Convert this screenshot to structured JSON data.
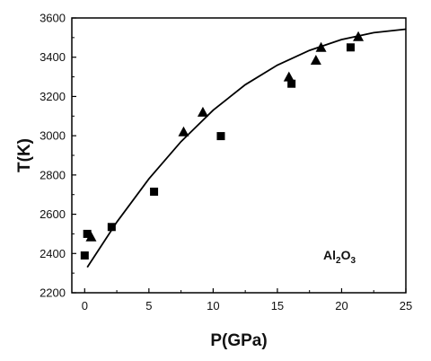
{
  "chart_data": {
    "type": "scatter",
    "xlabel": "P(GPa)",
    "ylabel": "T(K)",
    "xlim": [
      -1,
      25
    ],
    "ylim": [
      2200,
      3600
    ],
    "xticks": [
      0,
      5,
      10,
      15,
      20,
      25
    ],
    "yticks": [
      2200,
      2400,
      2600,
      2800,
      3000,
      3200,
      3400,
      3600
    ],
    "xtick_labels": [
      "0",
      "5",
      "10",
      "15",
      "20",
      "25"
    ],
    "ytick_labels": [
      "2200",
      "2400",
      "2600",
      "2800",
      "3000",
      "3200",
      "3400",
      "3600"
    ],
    "grid": false,
    "annotation": {
      "base": "Al",
      "sub1": "2",
      "mid": "O",
      "sub2": "3"
    },
    "series": [
      {
        "marker": "square",
        "points": [
          {
            "x": 0.0,
            "y": 2390
          },
          {
            "x": 0.2,
            "y": 2500
          },
          {
            "x": 2.1,
            "y": 2535
          },
          {
            "x": 5.4,
            "y": 2715
          },
          {
            "x": 10.6,
            "y": 2998
          },
          {
            "x": 16.1,
            "y": 3265
          },
          {
            "x": 20.7,
            "y": 3450
          }
        ]
      },
      {
        "marker": "triangle",
        "points": [
          {
            "x": 0.5,
            "y": 2485
          },
          {
            "x": 7.7,
            "y": 3020
          },
          {
            "x": 9.2,
            "y": 3120
          },
          {
            "x": 15.9,
            "y": 3300
          },
          {
            "x": 18.0,
            "y": 3385
          },
          {
            "x": 18.4,
            "y": 3450
          },
          {
            "x": 21.3,
            "y": 3505
          }
        ]
      },
      {
        "marker": "line",
        "points": [
          {
            "x": 0.2,
            "y": 2330
          },
          {
            "x": 2.5,
            "y": 2560
          },
          {
            "x": 5.0,
            "y": 2780
          },
          {
            "x": 7.5,
            "y": 2970
          },
          {
            "x": 10.0,
            "y": 3130
          },
          {
            "x": 12.5,
            "y": 3260
          },
          {
            "x": 15.0,
            "y": 3360
          },
          {
            "x": 17.5,
            "y": 3435
          },
          {
            "x": 20.0,
            "y": 3490
          },
          {
            "x": 22.5,
            "y": 3525
          },
          {
            "x": 25.0,
            "y": 3543
          }
        ]
      }
    ]
  }
}
